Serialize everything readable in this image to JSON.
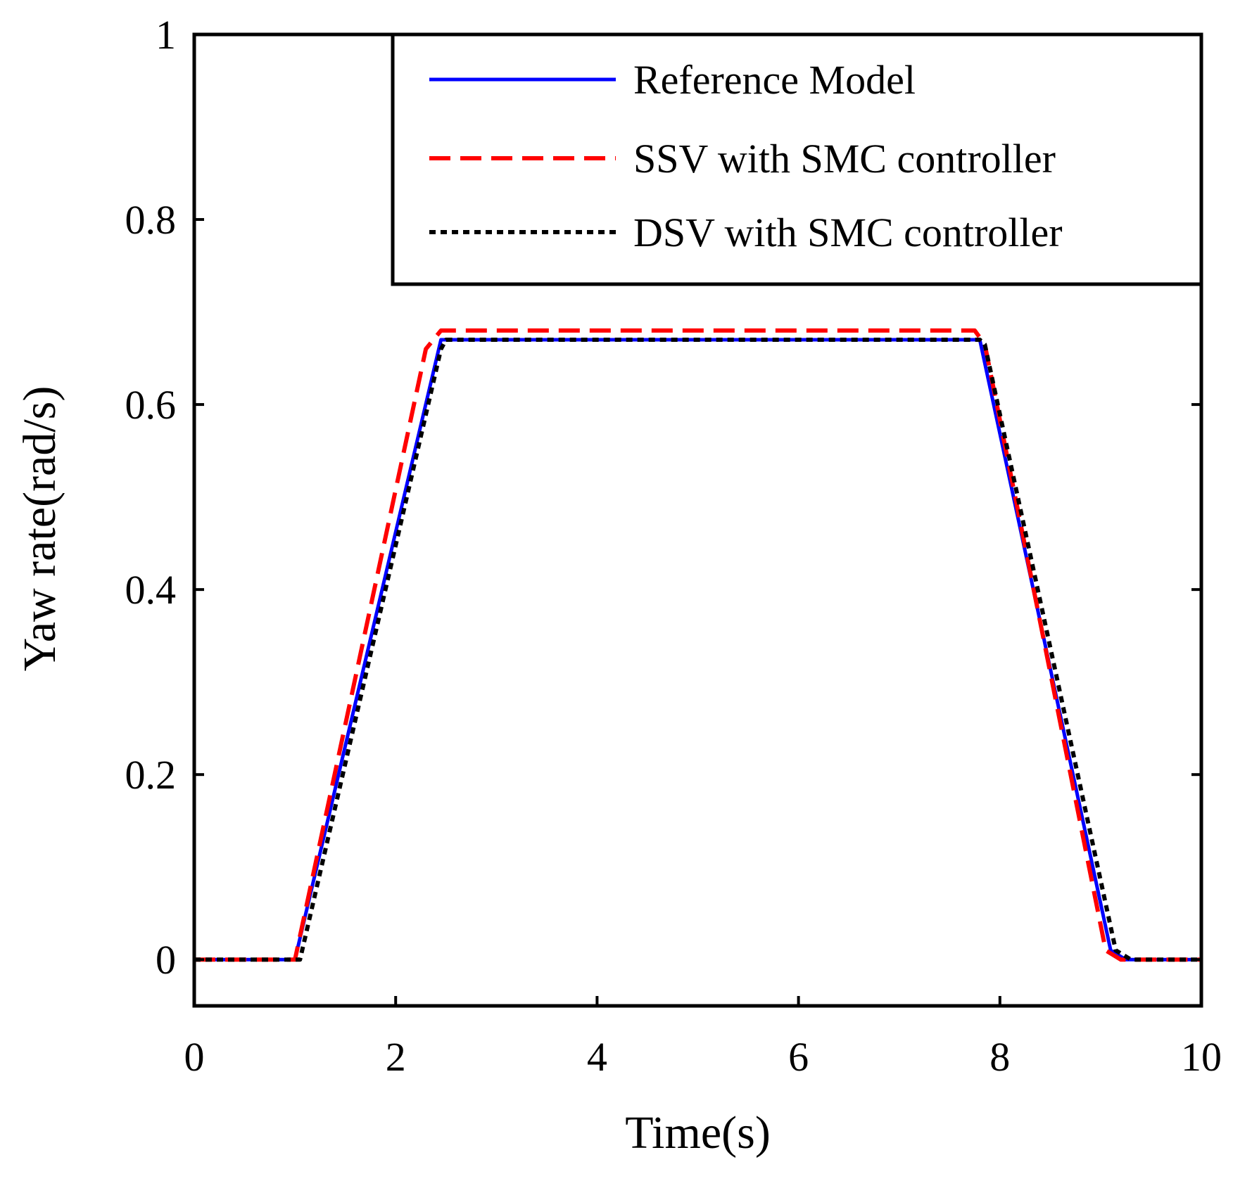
{
  "chart_data": {
    "type": "line",
    "title": "",
    "xlabel": "Time(s)",
    "ylabel": "Yaw rate(rad/s)",
    "xlim": [
      0,
      10
    ],
    "ylim": [
      -0.05,
      1
    ],
    "grid": false,
    "legend_position": "top-right",
    "xticks": [
      0,
      2,
      4,
      6,
      8,
      10
    ],
    "xtick_labels": [
      "0",
      "2",
      "4",
      "6",
      "8",
      "10"
    ],
    "yticks": [
      0,
      0.2,
      0.4,
      0.6,
      0.8,
      1
    ],
    "ytick_labels": [
      "0",
      "0.2",
      "0.4",
      "0.6",
      "0.8",
      "1"
    ],
    "series": [
      {
        "name": "Reference Model",
        "color": "#0000ff",
        "style": "solid",
        "x": [
          0,
          0.95,
          1.0,
          2.45,
          7.8,
          9.1,
          9.25,
          10
        ],
        "y": [
          0,
          0,
          0,
          0.67,
          0.67,
          0.01,
          0,
          0
        ]
      },
      {
        "name": "SSV with SMC controller",
        "color": "#ff0000",
        "style": "dashed",
        "x": [
          0,
          0.95,
          1.0,
          2.3,
          2.45,
          7.75,
          7.85,
          9.05,
          9.2,
          10
        ],
        "y": [
          0,
          0,
          0,
          0.66,
          0.68,
          0.68,
          0.665,
          0.01,
          0,
          0
        ]
      },
      {
        "name": "DSV with SMC controller",
        "color": "#000000",
        "style": "dotted",
        "x": [
          0,
          0.97,
          1.05,
          2.45,
          2.5,
          7.8,
          7.85,
          9.15,
          9.3,
          10
        ],
        "y": [
          0,
          0,
          0,
          0.66,
          0.67,
          0.67,
          0.665,
          0.01,
          0,
          0
        ]
      }
    ]
  }
}
